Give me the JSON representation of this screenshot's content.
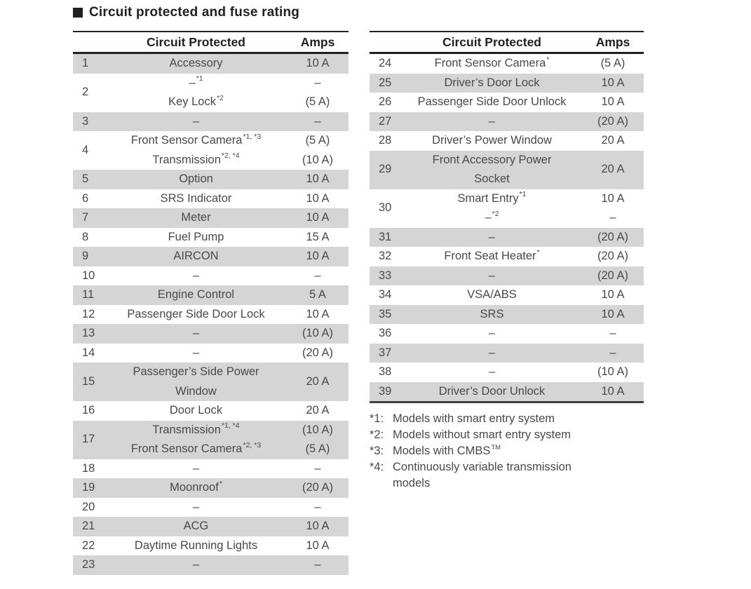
{
  "page": {
    "title": "Circuit protected and fuse rating"
  },
  "colors": {
    "shaded_row": "#d5d5d6",
    "ink": "#231f20",
    "body_text": "#48494b"
  },
  "tables": [
    {
      "name": "fuse-table-left",
      "headers": {
        "circuit": "Circuit Protected",
        "amps": "Amps"
      },
      "rows": [
        {
          "num": "1",
          "shaded": true,
          "circuit": [
            {
              "text": "Accessory"
            }
          ],
          "amps": [
            "10 A"
          ]
        },
        {
          "num": "2",
          "shaded": false,
          "circuit": [
            {
              "text": "–",
              "sup": "*1"
            },
            {
              "text": "Key Lock",
              "sup": "*2"
            }
          ],
          "amps": [
            "–",
            "(5 A)"
          ]
        },
        {
          "num": "3",
          "shaded": true,
          "circuit": [
            {
              "text": "–"
            }
          ],
          "amps": [
            "–"
          ]
        },
        {
          "num": "4",
          "shaded": false,
          "circuit": [
            {
              "text": "Front Sensor Camera",
              "sup": "*1, *3"
            },
            {
              "text": "Transmission",
              "sup": "*2, *4"
            }
          ],
          "amps": [
            "(5 A)",
            "(10 A)"
          ]
        },
        {
          "num": "5",
          "shaded": true,
          "circuit": [
            {
              "text": "Option"
            }
          ],
          "amps": [
            "10 A"
          ]
        },
        {
          "num": "6",
          "shaded": false,
          "circuit": [
            {
              "text": "SRS Indicator"
            }
          ],
          "amps": [
            "10 A"
          ]
        },
        {
          "num": "7",
          "shaded": true,
          "circuit": [
            {
              "text": "Meter"
            }
          ],
          "amps": [
            "10 A"
          ]
        },
        {
          "num": "8",
          "shaded": false,
          "circuit": [
            {
              "text": "Fuel Pump"
            }
          ],
          "amps": [
            "15 A"
          ]
        },
        {
          "num": "9",
          "shaded": true,
          "circuit": [
            {
              "text": "AIRCON"
            }
          ],
          "amps": [
            "10 A"
          ]
        },
        {
          "num": "10",
          "shaded": false,
          "circuit": [
            {
              "text": "–"
            }
          ],
          "amps": [
            "–"
          ]
        },
        {
          "num": "11",
          "shaded": true,
          "circuit": [
            {
              "text": "Engine Control"
            }
          ],
          "amps": [
            "5 A"
          ]
        },
        {
          "num": "12",
          "shaded": false,
          "circuit": [
            {
              "text": "Passenger Side Door Lock"
            }
          ],
          "amps": [
            "10 A"
          ]
        },
        {
          "num": "13",
          "shaded": true,
          "circuit": [
            {
              "text": "–"
            }
          ],
          "amps": [
            "(10 A)"
          ]
        },
        {
          "num": "14",
          "shaded": false,
          "circuit": [
            {
              "text": "–"
            }
          ],
          "amps": [
            "(20 A)"
          ]
        },
        {
          "num": "15",
          "shaded": true,
          "circuit": [
            {
              "text": "Passenger’s Side Power"
            },
            {
              "text": "Window"
            }
          ],
          "amps": [
            "20 A"
          ]
        },
        {
          "num": "16",
          "shaded": false,
          "circuit": [
            {
              "text": "Door Lock"
            }
          ],
          "amps": [
            "20 A"
          ]
        },
        {
          "num": "17",
          "shaded": true,
          "circuit": [
            {
              "text": "Transmission",
              "sup": "*1, *4"
            },
            {
              "text": "Front Sensor Camera",
              "sup": "*2, *3"
            }
          ],
          "amps": [
            "(10 A)",
            "(5 A)"
          ]
        },
        {
          "num": "18",
          "shaded": false,
          "circuit": [
            {
              "text": "–"
            }
          ],
          "amps": [
            "–"
          ]
        },
        {
          "num": "19",
          "shaded": true,
          "circuit": [
            {
              "text": "Moonroof",
              "sup": "*"
            }
          ],
          "amps": [
            "(20 A)"
          ]
        },
        {
          "num": "20",
          "shaded": false,
          "circuit": [
            {
              "text": "–"
            }
          ],
          "amps": [
            "–"
          ]
        },
        {
          "num": "21",
          "shaded": true,
          "circuit": [
            {
              "text": "ACG"
            }
          ],
          "amps": [
            "10 A"
          ]
        },
        {
          "num": "22",
          "shaded": false,
          "circuit": [
            {
              "text": "Daytime Running Lights"
            }
          ],
          "amps": [
            "10 A"
          ]
        },
        {
          "num": "23",
          "shaded": true,
          "circuit": [
            {
              "text": "–"
            }
          ],
          "amps": [
            "–"
          ]
        }
      ]
    },
    {
      "name": "fuse-table-right",
      "headers": {
        "circuit": "Circuit Protected",
        "amps": "Amps"
      },
      "rows": [
        {
          "num": "24",
          "shaded": false,
          "circuit": [
            {
              "text": "Front Sensor Camera",
              "sup": "*"
            }
          ],
          "amps": [
            "(5 A)"
          ]
        },
        {
          "num": "25",
          "shaded": true,
          "circuit": [
            {
              "text": "Driver’s Door Lock"
            }
          ],
          "amps": [
            "10 A"
          ]
        },
        {
          "num": "26",
          "shaded": false,
          "circuit": [
            {
              "text": "Passenger Side Door Unlock"
            }
          ],
          "amps": [
            "10 A"
          ]
        },
        {
          "num": "27",
          "shaded": true,
          "circuit": [
            {
              "text": "–"
            }
          ],
          "amps": [
            "(20 A)"
          ]
        },
        {
          "num": "28",
          "shaded": false,
          "circuit": [
            {
              "text": "Driver’s Power Window"
            }
          ],
          "amps": [
            "20 A"
          ]
        },
        {
          "num": "29",
          "shaded": true,
          "circuit": [
            {
              "text": "Front Accessory Power"
            },
            {
              "text": "Socket"
            }
          ],
          "amps": [
            "20 A"
          ]
        },
        {
          "num": "30",
          "shaded": false,
          "circuit": [
            {
              "text": "Smart Entry",
              "sup": "*1"
            },
            {
              "text": "–",
              "sup": "*2"
            }
          ],
          "amps": [
            "10 A",
            "–"
          ]
        },
        {
          "num": "31",
          "shaded": true,
          "circuit": [
            {
              "text": "–"
            }
          ],
          "amps": [
            "(20 A)"
          ]
        },
        {
          "num": "32",
          "shaded": false,
          "circuit": [
            {
              "text": "Front Seat Heater",
              "sup": "*"
            }
          ],
          "amps": [
            "(20 A)"
          ]
        },
        {
          "num": "33",
          "shaded": true,
          "circuit": [
            {
              "text": "–"
            }
          ],
          "amps": [
            "(20 A)"
          ]
        },
        {
          "num": "34",
          "shaded": false,
          "circuit": [
            {
              "text": "VSA/ABS"
            }
          ],
          "amps": [
            "10 A"
          ]
        },
        {
          "num": "35",
          "shaded": true,
          "circuit": [
            {
              "text": "SRS"
            }
          ],
          "amps": [
            "10 A"
          ]
        },
        {
          "num": "36",
          "shaded": false,
          "circuit": [
            {
              "text": "–"
            }
          ],
          "amps": [
            "–"
          ]
        },
        {
          "num": "37",
          "shaded": true,
          "circuit": [
            {
              "text": "–"
            }
          ],
          "amps": [
            "–"
          ]
        },
        {
          "num": "38",
          "shaded": false,
          "circuit": [
            {
              "text": "–"
            }
          ],
          "amps": [
            "(10 A)"
          ]
        },
        {
          "num": "39",
          "shaded": true,
          "circuit": [
            {
              "text": "Driver’s Door Unlock"
            }
          ],
          "amps": [
            "10 A"
          ]
        }
      ]
    }
  ],
  "footnotes": [
    {
      "marker": "*1:",
      "text": "Models with smart entry system"
    },
    {
      "marker": "*2:",
      "text": "Models without smart entry system"
    },
    {
      "marker": "*3:",
      "text": "Models with CMBS",
      "sup": "TM"
    },
    {
      "marker": "*4:",
      "text": "Continuously variable transmission models"
    }
  ]
}
